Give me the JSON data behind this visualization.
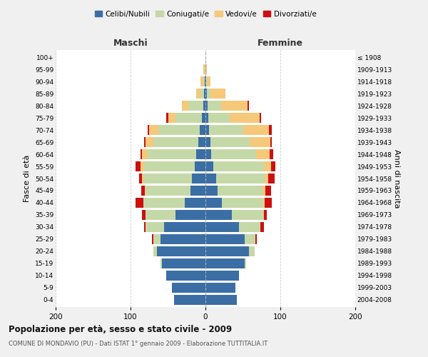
{
  "age_groups": [
    "0-4",
    "5-9",
    "10-14",
    "15-19",
    "20-24",
    "25-29",
    "30-34",
    "35-39",
    "40-44",
    "45-49",
    "50-54",
    "55-59",
    "60-64",
    "65-69",
    "70-74",
    "75-79",
    "80-84",
    "85-89",
    "90-94",
    "95-99",
    "100+"
  ],
  "birth_years": [
    "2004-2008",
    "1999-2003",
    "1994-1998",
    "1989-1993",
    "1984-1988",
    "1979-1983",
    "1974-1978",
    "1969-1973",
    "1964-1968",
    "1959-1963",
    "1954-1958",
    "1949-1953",
    "1944-1948",
    "1939-1943",
    "1934-1938",
    "1929-1933",
    "1924-1928",
    "1919-1923",
    "1914-1918",
    "1909-1913",
    "≤ 1908"
  ],
  "maschi": {
    "celibi": [
      42,
      45,
      52,
      58,
      65,
      60,
      55,
      40,
      28,
      20,
      18,
      14,
      12,
      10,
      8,
      5,
      3,
      2,
      1,
      0,
      0
    ],
    "coniugati": [
      0,
      0,
      0,
      2,
      5,
      10,
      25,
      40,
      55,
      60,
      65,
      68,
      65,
      60,
      55,
      35,
      20,
      5,
      2,
      1,
      0
    ],
    "vedovi": [
      0,
      0,
      0,
      0,
      0,
      0,
      0,
      0,
      0,
      1,
      2,
      5,
      8,
      10,
      12,
      10,
      8,
      5,
      4,
      2,
      0
    ],
    "divorziati": [
      0,
      0,
      0,
      0,
      0,
      1,
      2,
      5,
      10,
      5,
      4,
      6,
      2,
      2,
      2,
      2,
      0,
      0,
      0,
      0,
      0
    ]
  },
  "femmine": {
    "nubili": [
      42,
      40,
      45,
      52,
      58,
      52,
      45,
      35,
      22,
      16,
      14,
      10,
      8,
      7,
      5,
      4,
      3,
      2,
      1,
      0,
      0
    ],
    "coniugate": [
      0,
      0,
      0,
      2,
      8,
      15,
      28,
      42,
      55,
      60,
      65,
      68,
      60,
      52,
      45,
      28,
      18,
      5,
      1,
      0,
      0
    ],
    "vedove": [
      0,
      0,
      0,
      0,
      0,
      0,
      0,
      1,
      2,
      4,
      5,
      10,
      18,
      28,
      35,
      40,
      35,
      20,
      5,
      2,
      0
    ],
    "divorziate": [
      0,
      0,
      0,
      0,
      0,
      2,
      5,
      4,
      10,
      8,
      8,
      5,
      4,
      2,
      4,
      2,
      2,
      0,
      0,
      0,
      0
    ]
  },
  "colors": {
    "celibi": "#3a6ea5",
    "coniugati": "#c5d9a8",
    "vedovi": "#f5c87a",
    "divorziati": "#cc1010"
  },
  "title": "Popolazione per età, sesso e stato civile - 2009",
  "subtitle": "COMUNE DI MONDAVIO (PU) - Dati ISTAT 1° gennaio 2009 - Elaborazione TUTTITALIA.IT",
  "xlabel_left": "Maschi",
  "xlabel_right": "Femmine",
  "ylabel_left": "Fasce di età",
  "ylabel_right": "Anni di nascita",
  "legend_labels": [
    "Celibi/Nubili",
    "Coniugati/e",
    "Vedovi/e",
    "Divorziati/e"
  ],
  "xlim": 200,
  "background": "#f0f0f0",
  "plot_background": "#ffffff"
}
